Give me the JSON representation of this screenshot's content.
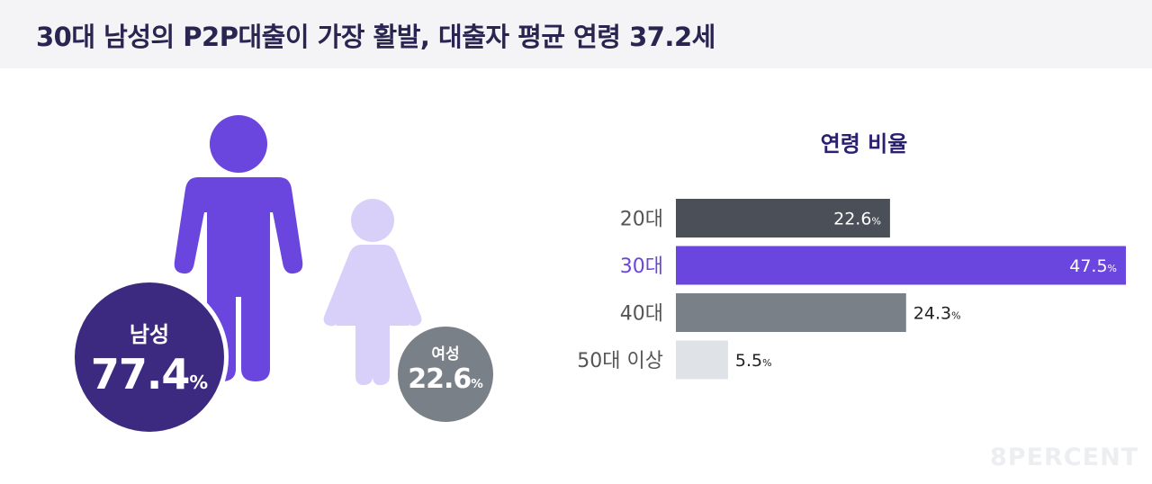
{
  "header": {
    "title": "30대 남성의 P2P대출이 가장 활발, 대출자 평균 연령 37.2세"
  },
  "gender": {
    "male": {
      "label": "남성",
      "value": "77.4",
      "unit": "%",
      "color": "#6b46de",
      "circle_color": "#3c2a80"
    },
    "female": {
      "label": "여성",
      "value": "22.6",
      "unit": "%",
      "color": "#d9d0fa",
      "circle_color": "#7a8088"
    }
  },
  "chart_data": {
    "type": "bar",
    "orientation": "horizontal",
    "title": "연령 비율",
    "categories": [
      "20대",
      "30대",
      "40대",
      "50대 이상"
    ],
    "values": [
      22.6,
      47.5,
      24.3,
      5.5
    ],
    "value_unit": "%",
    "highlight_index": 1,
    "bar_colors": [
      "#4a4f58",
      "#6b46de",
      "#7a8088",
      "#dfe2e6"
    ],
    "category_label_colors": [
      "#555555",
      "#6b46de",
      "#555555",
      "#555555"
    ],
    "value_label_colors": [
      "#ffffff",
      "#ffffff",
      "#222222",
      "#222222"
    ],
    "value_label_inside": [
      true,
      true,
      false,
      false
    ],
    "xlim": [
      0,
      47.5
    ],
    "grid": false,
    "legend": "none"
  },
  "watermark": "8PERCENT"
}
